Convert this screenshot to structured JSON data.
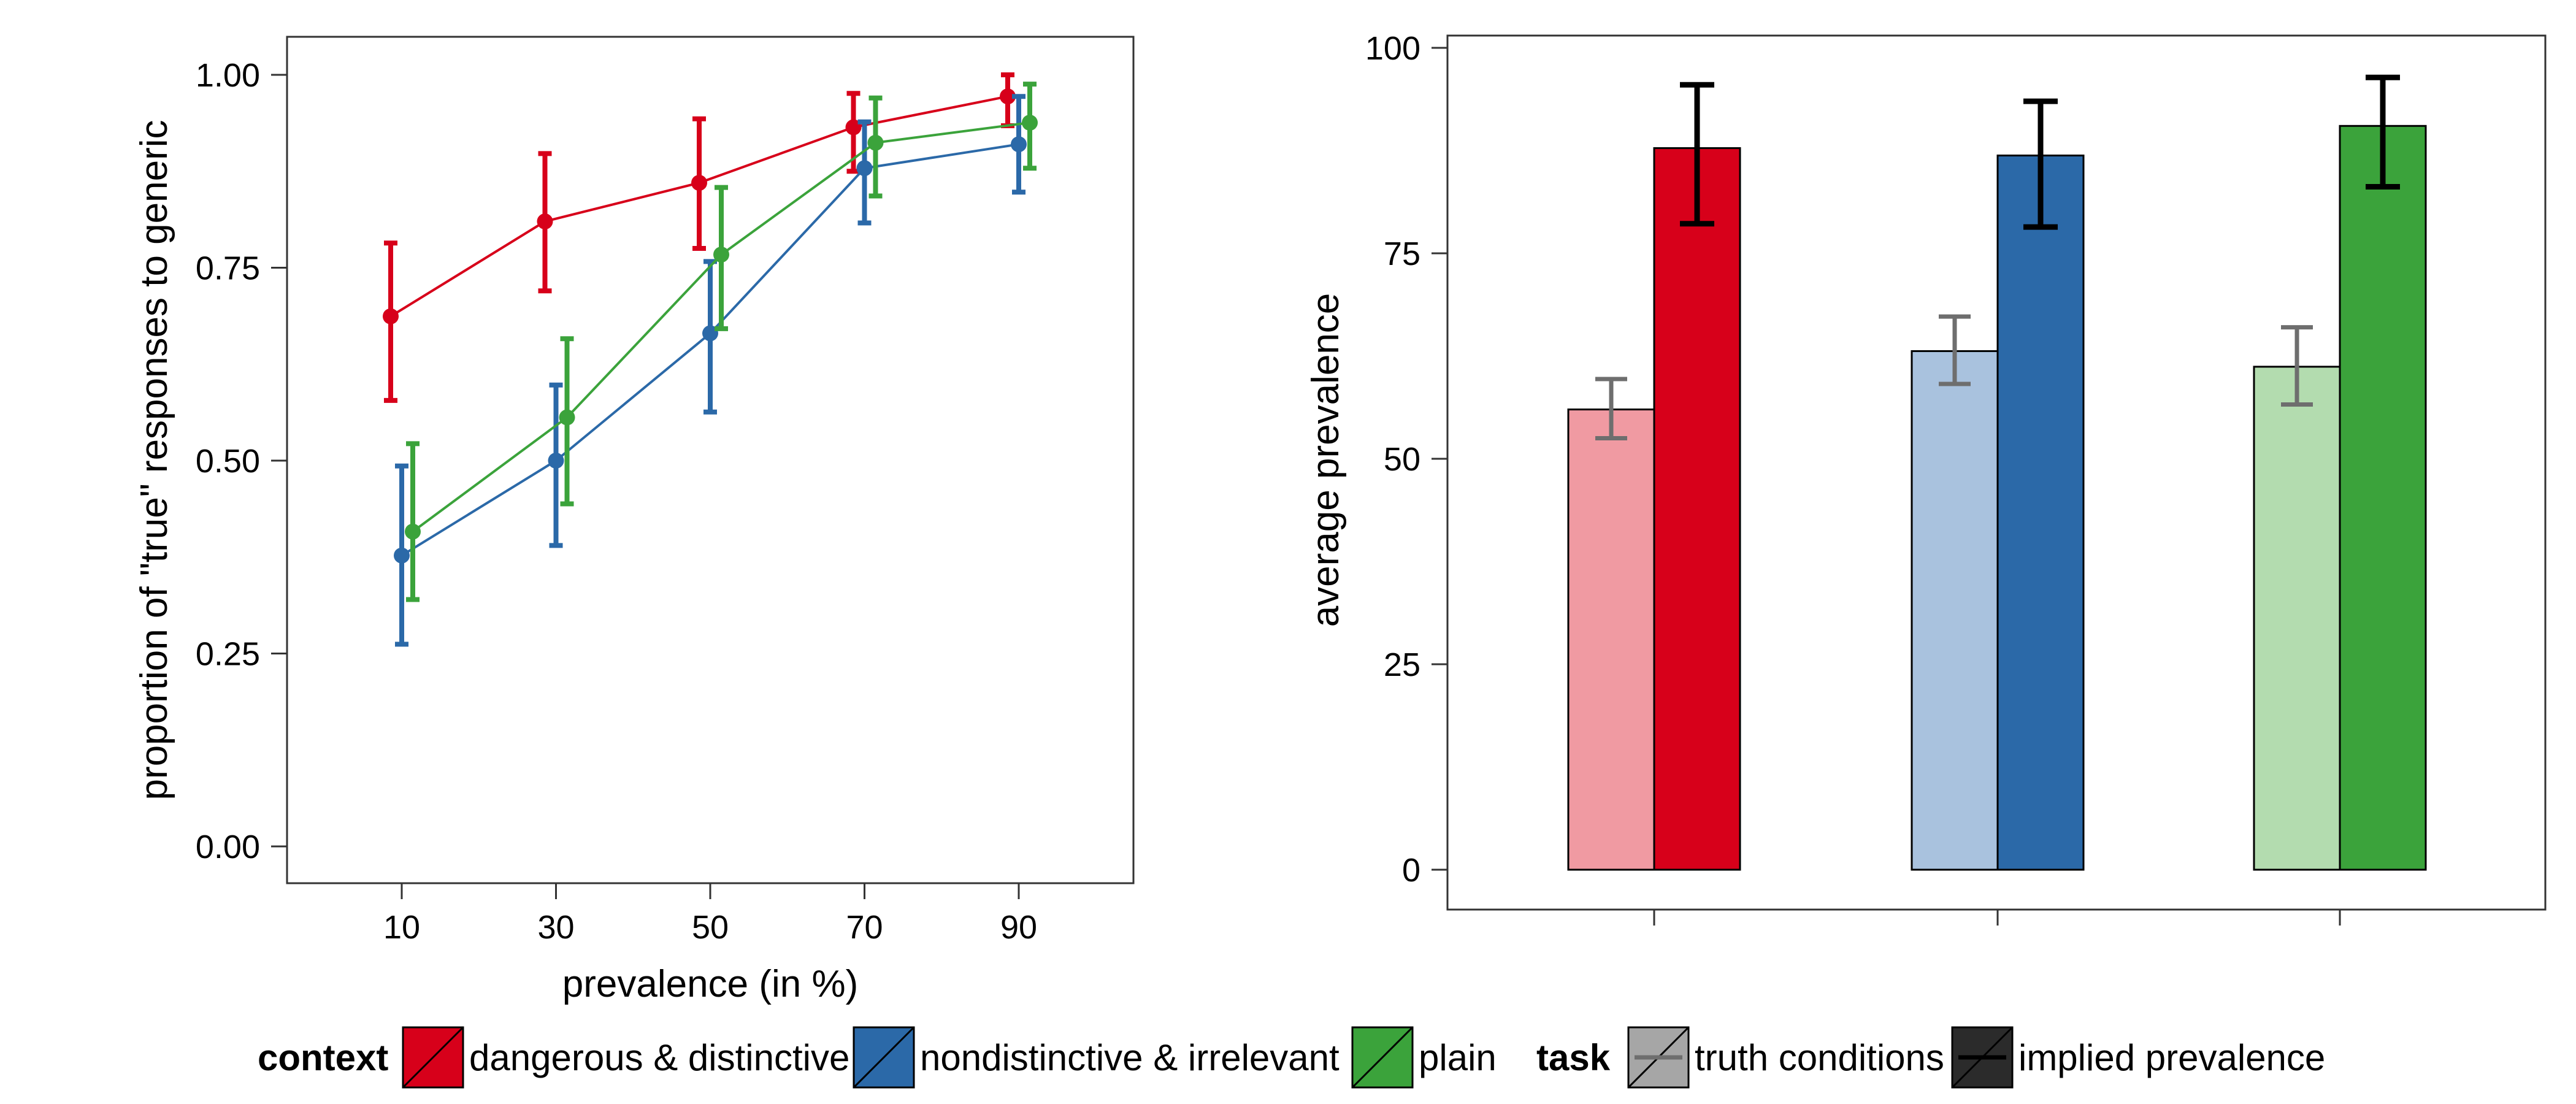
{
  "chart_data": [
    {
      "type": "line",
      "xlabel": "prevalence (in %)",
      "ylabel": "proportion of \"true\" responses to generic",
      "x": [
        10,
        30,
        50,
        70,
        90
      ],
      "x_tick_labels": [
        "10",
        "30",
        "50",
        "70",
        "90"
      ],
      "ylim": [
        0,
        1
      ],
      "y_ticks": [
        0,
        0.25,
        0.5,
        0.75,
        1
      ],
      "y_tick_labels": [
        "0.00",
        "0.25",
        "0.50",
        "0.75",
        "1.00"
      ],
      "grid": false,
      "series": [
        {
          "name": "dangerous & distinctive",
          "color": "#d7001a",
          "values": [
            0.687,
            0.81,
            0.86,
            0.932,
            0.972
          ],
          "lower": [
            0.578,
            0.72,
            0.775,
            0.875,
            0.934
          ],
          "upper": [
            0.782,
            0.898,
            0.943,
            0.976,
            1.0
          ]
        },
        {
          "name": "nondistinctive & irrelevant",
          "color": "#2b69a8",
          "values": [
            0.377,
            0.5,
            0.665,
            0.879,
            0.91
          ],
          "lower": [
            0.262,
            0.39,
            0.563,
            0.808,
            0.848
          ],
          "upper": [
            0.493,
            0.598,
            0.758,
            0.939,
            0.972
          ]
        },
        {
          "name": "plain",
          "color": "#3ba33b",
          "values": [
            0.408,
            0.556,
            0.767,
            0.912,
            0.938
          ],
          "lower": [
            0.32,
            0.444,
            0.671,
            0.843,
            0.879
          ],
          "upper": [
            0.522,
            0.658,
            0.854,
            0.97,
            0.988
          ]
        }
      ]
    },
    {
      "type": "bar",
      "ylabel": "average prevalence",
      "xlabel": "",
      "ylim": [
        0,
        100
      ],
      "y_ticks": [
        0,
        25,
        50,
        75,
        100
      ],
      "y_tick_labels": [
        "0",
        "25",
        "50",
        "75",
        "100"
      ],
      "grid": false,
      "groups": [
        "dangerous & distinctive",
        "nondistinctive & irrelevant",
        "plain"
      ],
      "series": [
        {
          "name": "truth conditions",
          "colors": [
            "#f09aa2",
            "#a9c2de",
            "#b3dcaf"
          ],
          "errorbar_color": "#6e6e6e",
          "values": [
            56.0,
            63.1,
            61.2
          ],
          "lower": [
            52.5,
            59.1,
            56.6
          ],
          "upper": [
            59.7,
            67.3,
            66.0
          ]
        },
        {
          "name": "implied prevalence",
          "colors": [
            "#d7001a",
            "#2b69a8",
            "#3ba33b"
          ],
          "errorbar_color": "#000000",
          "values": [
            87.8,
            86.9,
            90.5
          ],
          "lower": [
            78.6,
            78.2,
            83.1
          ],
          "upper": [
            95.5,
            93.5,
            96.4
          ]
        }
      ]
    }
  ],
  "legend": {
    "context_title": "context",
    "context_items": [
      {
        "label": "dangerous & distinctive",
        "color": "#d7001a"
      },
      {
        "label": "nondistinctive & irrelevant",
        "color": "#2b69a8"
      },
      {
        "label": "plain",
        "color": "#3ba33b"
      }
    ],
    "task_title": "task",
    "task_items": [
      {
        "label": "truth conditions",
        "color": "#a6a6a6",
        "line_color": "#6e6e6e"
      },
      {
        "label": "implied prevalence",
        "color": "#2b2b2b",
        "line_color": "#000000"
      }
    ]
  }
}
